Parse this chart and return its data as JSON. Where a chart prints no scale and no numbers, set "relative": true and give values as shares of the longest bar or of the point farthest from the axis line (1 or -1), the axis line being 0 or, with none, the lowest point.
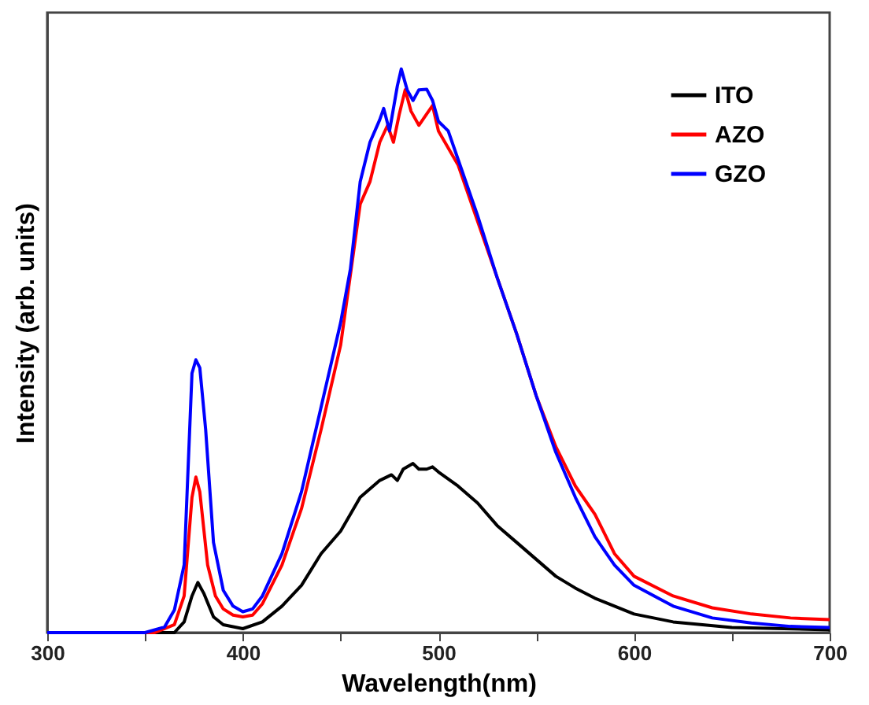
{
  "chart_data": {
    "type": "line",
    "xlabel": "Wavelength(nm)",
    "ylabel": "Intensity (arb. units)",
    "relative": true,
    "xlim": [
      300,
      700
    ],
    "xticks": [
      300,
      {
        "value": 350,
        "label": null
      },
      400,
      {
        "value": 450,
        "label": null
      },
      500,
      {
        "value": 550,
        "label": null
      },
      600,
      {
        "value": 650,
        "label": null
      },
      700
    ],
    "legend": "top right",
    "grid": false,
    "marker": "none",
    "line_style": "solid",
    "series": [
      {
        "name": "ITO",
        "color": "#000000",
        "x": [
          300,
          365,
          370,
          374,
          377,
          380,
          385,
          390,
          400,
          410,
          420,
          430,
          440,
          450,
          460,
          470,
          476,
          479,
          482,
          487,
          490,
          494,
          497,
          500,
          510,
          520,
          530,
          540,
          550,
          560,
          570,
          580,
          600,
          620,
          650,
          700
        ],
        "values": [
          0,
          0,
          0.019,
          0.065,
          0.089,
          0.07,
          0.028,
          0.014,
          0.007,
          0.019,
          0.047,
          0.084,
          0.14,
          0.18,
          0.24,
          0.27,
          0.28,
          0.27,
          0.29,
          0.3,
          0.29,
          0.29,
          0.294,
          0.285,
          0.26,
          0.23,
          0.19,
          0.16,
          0.13,
          0.1,
          0.079,
          0.061,
          0.033,
          0.019,
          0.009,
          0.005
        ]
      },
      {
        "name": "AZO",
        "color": "#ff0000",
        "x": [
          300,
          355,
          365,
          370,
          374,
          376,
          378,
          382,
          386,
          390,
          395,
          400,
          405,
          410,
          420,
          430,
          440,
          450,
          460,
          465,
          470,
          474,
          477,
          480,
          483,
          486,
          490,
          494,
          497,
          500,
          510,
          520,
          530,
          540,
          550,
          560,
          570,
          580,
          590,
          600,
          620,
          640,
          660,
          680,
          700
        ],
        "values": [
          0,
          0,
          0.014,
          0.065,
          0.24,
          0.276,
          0.25,
          0.12,
          0.065,
          0.042,
          0.031,
          0.028,
          0.031,
          0.051,
          0.12,
          0.22,
          0.36,
          0.51,
          0.76,
          0.8,
          0.87,
          0.9,
          0.87,
          0.92,
          0.963,
          0.925,
          0.9,
          0.92,
          0.935,
          0.89,
          0.83,
          0.73,
          0.63,
          0.53,
          0.42,
          0.33,
          0.26,
          0.21,
          0.14,
          0.1,
          0.065,
          0.044,
          0.033,
          0.026,
          0.023
        ]
      },
      {
        "name": "GZO",
        "color": "#0000ff",
        "x": [
          300,
          350,
          360,
          365,
          370,
          374,
          376,
          378,
          381,
          385,
          390,
          395,
          400,
          405,
          410,
          420,
          430,
          440,
          450,
          455,
          460,
          465,
          470,
          472,
          475,
          479,
          481,
          484,
          487,
          490,
          494,
          497,
          500,
          505,
          510,
          520,
          530,
          540,
          550,
          560,
          570,
          580,
          590,
          600,
          620,
          640,
          660,
          680,
          700
        ],
        "values": [
          0,
          0,
          0.01,
          0.04,
          0.12,
          0.46,
          0.484,
          0.47,
          0.36,
          0.16,
          0.075,
          0.047,
          0.037,
          0.042,
          0.065,
          0.14,
          0.25,
          0.4,
          0.55,
          0.645,
          0.8,
          0.87,
          0.91,
          0.93,
          0.89,
          0.97,
          1.0,
          0.963,
          0.944,
          0.963,
          0.964,
          0.944,
          0.907,
          0.89,
          0.84,
          0.74,
          0.63,
          0.53,
          0.42,
          0.32,
          0.24,
          0.17,
          0.12,
          0.084,
          0.047,
          0.026,
          0.017,
          0.011,
          0.009
        ]
      }
    ]
  }
}
